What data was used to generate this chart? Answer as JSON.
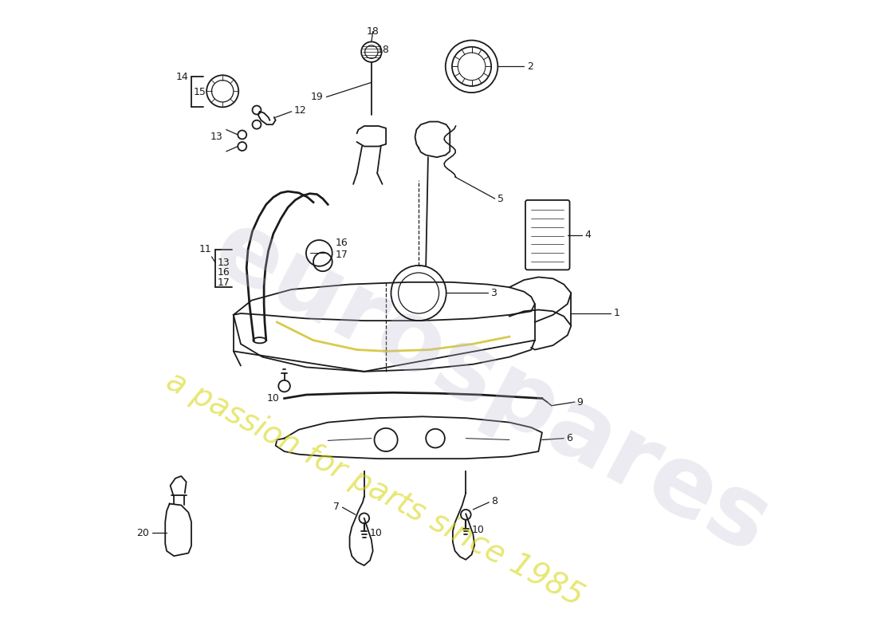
{
  "background_color": "#ffffff",
  "line_color": "#1a1a1a",
  "watermark_color1": "#b8b8cc",
  "watermark_color2": "#d4d400",
  "fig_width": 11.0,
  "fig_height": 8.0,
  "dpi": 100
}
